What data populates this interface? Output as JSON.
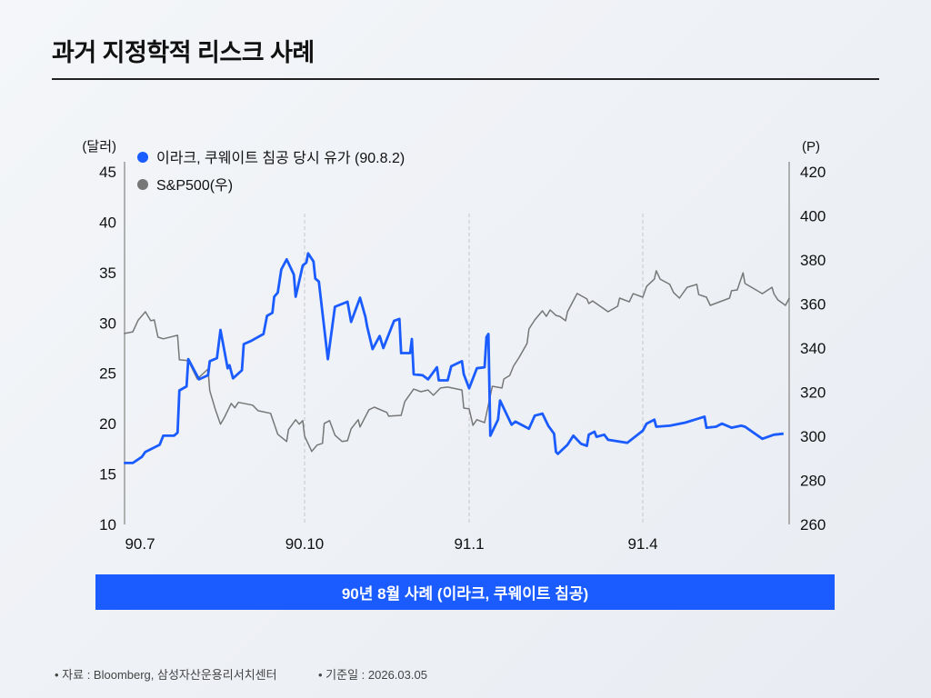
{
  "title": "과거 지정학적 리스크 사례",
  "banner": "90년 8월 사례 (이라크, 쿠웨이트 침공)",
  "footer": {
    "source": "• 자료 : Bloomberg, 삼성자산운용리서치센터",
    "date": "• 기준일 :  2026.03.05"
  },
  "chart_data": {
    "type": "line",
    "y_left_label": "(달러)",
    "y_right_label": "(P)",
    "y_left_lim": [
      10,
      45
    ],
    "y_right_lim": [
      260,
      420
    ],
    "y_left_ticks": [
      "10",
      "15",
      "20",
      "25",
      "30",
      "35",
      "40",
      "45"
    ],
    "y_right_ticks": [
      "260",
      "280",
      "300",
      "320",
      "340",
      "360",
      "380",
      "400",
      "420"
    ],
    "x_ticks": [
      {
        "label": "90.7",
        "date": "1990-07-01"
      },
      {
        "label": "90.10",
        "date": "1990-10-01"
      },
      {
        "label": "91.1",
        "date": "1991-01-01"
      },
      {
        "label": "91.4",
        "date": "1991-04-01"
      }
    ],
    "grid": "vertical dashed at x ticks",
    "legend_position": "top-left",
    "series": [
      {
        "name": "이라크, 쿠웨이트 침공 당시 유가 (90.8.2)",
        "axis": "left",
        "color": "#1a5cff",
        "points": [
          [
            "1990-06-22",
            16.1
          ],
          [
            "1990-06-27",
            16.1
          ],
          [
            "1990-07-02",
            16.7
          ],
          [
            "1990-07-04",
            17.2
          ],
          [
            "1990-07-12",
            17.9
          ],
          [
            "1990-07-14",
            18.8
          ],
          [
            "1990-07-20",
            18.8
          ],
          [
            "1990-07-22",
            19.1
          ],
          [
            "1990-07-23",
            23.3
          ],
          [
            "1990-07-27",
            23.7
          ],
          [
            "1990-07-28",
            26.4
          ],
          [
            "1990-08-03",
            24.4
          ],
          [
            "1990-08-08",
            24.8
          ],
          [
            "1990-08-09",
            26.2
          ],
          [
            "1990-08-13",
            26.5
          ],
          [
            "1990-08-15",
            29.3
          ],
          [
            "1990-08-19",
            25.5
          ],
          [
            "1990-08-20",
            25.8
          ],
          [
            "1990-08-22",
            24.5
          ],
          [
            "1990-08-27",
            25.3
          ],
          [
            "1990-08-28",
            27.9
          ],
          [
            "1990-09-01",
            28.2
          ],
          [
            "1990-09-08",
            28.9
          ],
          [
            "1990-09-10",
            30.7
          ],
          [
            "1990-09-13",
            31.0
          ],
          [
            "1990-09-14",
            32.6
          ],
          [
            "1990-09-16",
            33.0
          ],
          [
            "1990-09-18",
            35.3
          ],
          [
            "1990-09-21",
            36.3
          ],
          [
            "1990-09-25",
            34.8
          ],
          [
            "1990-09-26",
            32.6
          ],
          [
            "1990-09-30",
            35.7
          ],
          [
            "1990-10-02",
            36.0
          ],
          [
            "1990-10-03",
            36.9
          ],
          [
            "1990-10-06",
            36.1
          ],
          [
            "1990-10-07",
            34.4
          ],
          [
            "1990-10-09",
            34.1
          ],
          [
            "1990-10-14",
            26.4
          ],
          [
            "1990-10-18",
            31.6
          ],
          [
            "1990-10-25",
            32.1
          ],
          [
            "1990-10-27",
            30.1
          ],
          [
            "1990-11-01",
            32.5
          ],
          [
            "1990-11-04",
            30.6
          ],
          [
            "1990-11-05",
            29.6
          ],
          [
            "1990-11-08",
            27.4
          ],
          [
            "1990-11-12",
            28.7
          ],
          [
            "1990-11-14",
            27.5
          ],
          [
            "1990-11-20",
            30.2
          ],
          [
            "1990-11-23",
            30.4
          ],
          [
            "1990-11-24",
            27.0
          ],
          [
            "1990-11-29",
            27.0
          ],
          [
            "1990-11-30",
            28.4
          ],
          [
            "1990-12-01",
            24.9
          ],
          [
            "1990-12-06",
            24.8
          ],
          [
            "1990-12-09",
            24.4
          ],
          [
            "1990-12-14",
            25.6
          ],
          [
            "1990-12-15",
            24.3
          ],
          [
            "1990-12-20",
            24.3
          ],
          [
            "1990-12-22",
            25.7
          ],
          [
            "1990-12-28",
            26.2
          ],
          [
            "1990-12-29",
            24.9
          ],
          [
            "1991-01-01",
            23.5
          ],
          [
            "1991-01-05",
            25.5
          ],
          [
            "1991-01-09",
            25.6
          ],
          [
            "1991-01-10",
            28.6
          ],
          [
            "1991-01-11",
            28.9
          ],
          [
            "1991-01-12",
            18.8
          ],
          [
            "1991-01-16",
            20.4
          ],
          [
            "1991-01-17",
            22.3
          ],
          [
            "1991-01-23",
            19.9
          ],
          [
            "1991-01-25",
            20.2
          ],
          [
            "1991-02-01",
            19.5
          ],
          [
            "1991-02-04",
            20.8
          ],
          [
            "1991-02-08",
            21.0
          ],
          [
            "1991-02-11",
            19.8
          ],
          [
            "1991-02-14",
            19.0
          ],
          [
            "1991-02-15",
            17.2
          ],
          [
            "1991-02-16",
            17.0
          ],
          [
            "1991-02-21",
            17.9
          ],
          [
            "1991-02-24",
            18.8
          ],
          [
            "1991-02-28",
            18.0
          ],
          [
            "1991-03-03",
            17.8
          ],
          [
            "1991-03-04",
            18.9
          ],
          [
            "1991-03-07",
            19.2
          ],
          [
            "1991-03-08",
            18.7
          ],
          [
            "1991-03-12",
            18.9
          ],
          [
            "1991-03-14",
            18.4
          ],
          [
            "1991-03-24",
            18.1
          ],
          [
            "1991-04-01",
            19.3
          ],
          [
            "1991-04-03",
            20.0
          ],
          [
            "1991-04-07",
            20.4
          ],
          [
            "1991-04-08",
            19.7
          ],
          [
            "1991-04-15",
            19.8
          ],
          [
            "1991-04-23",
            20.1
          ],
          [
            "1991-05-03",
            20.7
          ],
          [
            "1991-05-04",
            19.6
          ],
          [
            "1991-05-09",
            19.7
          ],
          [
            "1991-05-12",
            20.0
          ],
          [
            "1991-05-17",
            19.6
          ],
          [
            "1991-05-22",
            19.8
          ],
          [
            "1991-05-24",
            19.7
          ],
          [
            "1991-06-02",
            18.5
          ],
          [
            "1991-06-08",
            18.9
          ],
          [
            "1991-06-13",
            19.0
          ]
        ]
      },
      {
        "name": "S&P500(우)",
        "axis": "right",
        "color": "#777777",
        "points": [
          [
            "1990-06-22",
            346.6
          ],
          [
            "1990-06-27",
            347.4
          ],
          [
            "1990-06-30",
            352.7
          ],
          [
            "1990-07-04",
            356.5
          ],
          [
            "1990-07-07",
            352.4
          ],
          [
            "1990-07-09",
            352.8
          ],
          [
            "1990-07-11",
            345.0
          ],
          [
            "1990-07-14",
            344.2
          ],
          [
            "1990-07-22",
            345.8
          ],
          [
            "1990-07-23",
            334.7
          ],
          [
            "1990-07-28",
            334.3
          ],
          [
            "1990-08-02",
            326.0
          ],
          [
            "1990-08-08",
            330.5
          ],
          [
            "1990-08-09",
            320.7
          ],
          [
            "1990-08-12",
            312.5
          ],
          [
            "1990-08-15",
            305.5
          ],
          [
            "1990-08-17",
            308.3
          ],
          [
            "1990-08-21",
            314.9
          ],
          [
            "1990-08-23",
            312.9
          ],
          [
            "1990-08-25",
            315.4
          ],
          [
            "1990-09-02",
            314.1
          ],
          [
            "1990-09-05",
            311.6
          ],
          [
            "1990-09-12",
            310.4
          ],
          [
            "1990-09-16",
            300.9
          ],
          [
            "1990-09-21",
            297.6
          ],
          [
            "1990-09-22",
            303.0
          ],
          [
            "1990-09-26",
            307.5
          ],
          [
            "1990-09-28",
            305.5
          ],
          [
            "1990-09-30",
            307.1
          ],
          [
            "1990-10-01",
            300.1
          ],
          [
            "1990-10-05",
            293.1
          ],
          [
            "1990-10-08",
            296.0
          ],
          [
            "1990-10-11",
            296.8
          ],
          [
            "1990-10-12",
            305.8
          ],
          [
            "1990-10-15",
            307.1
          ],
          [
            "1990-10-18",
            300.5
          ],
          [
            "1990-10-22",
            297.6
          ],
          [
            "1990-10-25",
            298.0
          ],
          [
            "1990-10-27",
            303.4
          ],
          [
            "1990-10-31",
            307.5
          ],
          [
            "1990-11-01",
            304.2
          ],
          [
            "1990-11-06",
            312.0
          ],
          [
            "1990-11-09",
            313.2
          ],
          [
            "1990-11-16",
            310.8
          ],
          [
            "1990-11-17",
            309.1
          ],
          [
            "1990-11-24",
            309.5
          ],
          [
            "1990-11-26",
            315.7
          ],
          [
            "1990-12-01",
            321.4
          ],
          [
            "1990-12-05",
            320.2
          ],
          [
            "1990-12-09",
            321.0
          ],
          [
            "1990-12-12",
            318.6
          ],
          [
            "1990-12-16",
            321.9
          ],
          [
            "1990-12-20",
            322.3
          ],
          [
            "1990-12-28",
            321.0
          ],
          [
            "1990-12-29",
            312.8
          ],
          [
            "1991-01-01",
            312.4
          ],
          [
            "1991-01-03",
            305.0
          ],
          [
            "1991-01-05",
            307.5
          ],
          [
            "1991-01-09",
            306.2
          ],
          [
            "1991-01-13",
            322.7
          ],
          [
            "1991-01-18",
            321.9
          ],
          [
            "1991-01-19",
            326.0
          ],
          [
            "1991-01-22",
            327.6
          ],
          [
            "1991-01-24",
            331.8
          ],
          [
            "1991-01-27",
            335.9
          ],
          [
            "1991-01-31",
            342.1
          ],
          [
            "1991-02-01",
            348.7
          ],
          [
            "1991-02-04",
            352.8
          ],
          [
            "1991-02-08",
            356.9
          ],
          [
            "1991-02-10",
            354.4
          ],
          [
            "1991-02-12",
            357.3
          ],
          [
            "1991-02-15",
            354.8
          ],
          [
            "1991-02-17",
            354.4
          ],
          [
            "1991-02-20",
            352.4
          ],
          [
            "1991-02-21",
            356.5
          ],
          [
            "1991-02-26",
            364.8
          ],
          [
            "1991-03-03",
            362.3
          ],
          [
            "1991-03-04",
            360.2
          ],
          [
            "1991-03-06",
            361.4
          ],
          [
            "1991-03-14",
            356.5
          ],
          [
            "1991-03-19",
            359.0
          ],
          [
            "1991-03-20",
            362.7
          ],
          [
            "1991-03-25",
            361.0
          ],
          [
            "1991-03-27",
            364.7
          ],
          [
            "1991-04-01",
            363.1
          ],
          [
            "1991-04-03",
            368.0
          ],
          [
            "1991-04-07",
            371.3
          ],
          [
            "1991-04-08",
            375.1
          ],
          [
            "1991-04-10",
            371.3
          ],
          [
            "1991-04-15",
            368.9
          ],
          [
            "1991-04-17",
            365.2
          ],
          [
            "1991-04-20",
            362.7
          ],
          [
            "1991-04-24",
            367.6
          ],
          [
            "1991-04-29",
            368.9
          ],
          [
            "1991-04-30",
            364.3
          ],
          [
            "1991-05-04",
            363.1
          ],
          [
            "1991-05-06",
            359.4
          ],
          [
            "1991-05-16",
            362.7
          ],
          [
            "1991-05-17",
            366.0
          ],
          [
            "1991-05-20",
            366.4
          ],
          [
            "1991-05-23",
            374.2
          ],
          [
            "1991-05-24",
            369.3
          ],
          [
            "1991-06-02",
            364.7
          ],
          [
            "1991-06-07",
            367.6
          ],
          [
            "1991-06-08",
            364.7
          ],
          [
            "1991-06-10",
            361.9
          ],
          [
            "1991-06-14",
            359.4
          ],
          [
            "1991-06-16",
            362.7
          ]
        ]
      }
    ]
  }
}
